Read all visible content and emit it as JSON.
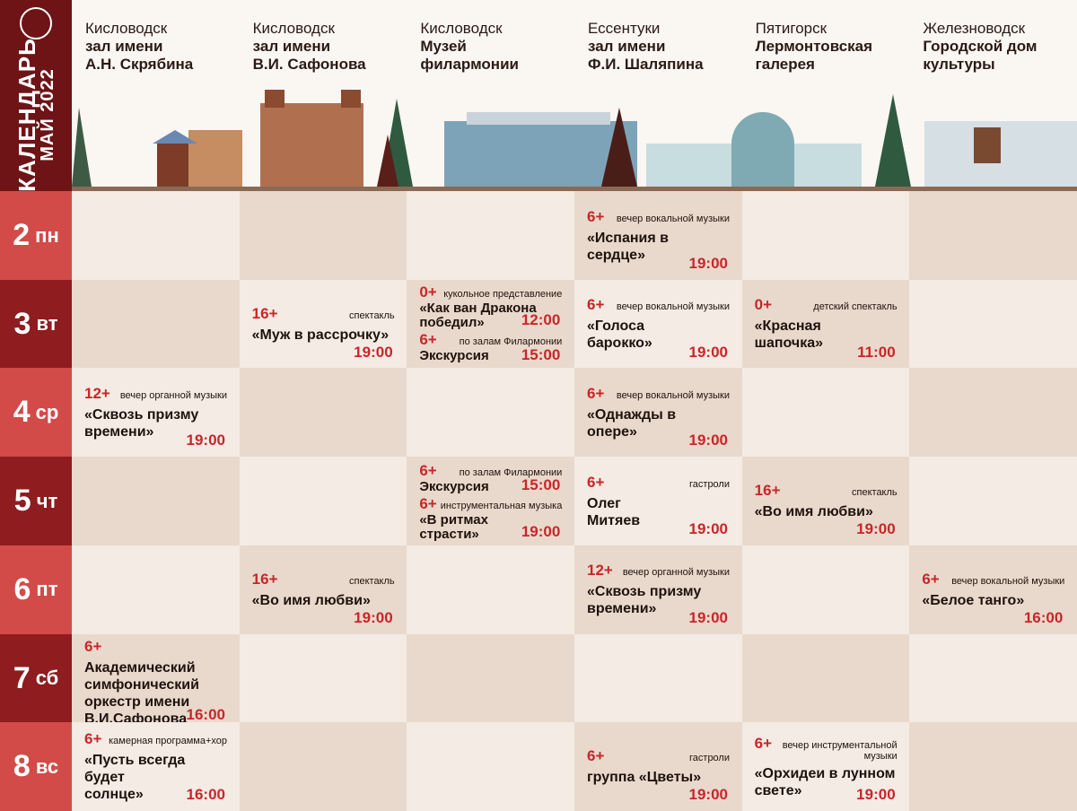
{
  "sidebar": {
    "title": "КАЛЕНДАРЬ",
    "month": "МАЙ",
    "year": "2022"
  },
  "venues": [
    {
      "city": "Кисловодск",
      "name": "зал имени\nА.Н. Скрябина"
    },
    {
      "city": "Кисловодск",
      "name": "зал имени\nВ.И. Сафонова"
    },
    {
      "city": "Кисловодск",
      "name": "Музей\nфилармонии"
    },
    {
      "city": "Ессентуки",
      "name": "зал имени\nФ.И. Шаляпина"
    },
    {
      "city": "Пятигорск",
      "name": "Лермонтовская\nгалерея"
    },
    {
      "city": "Железноводск",
      "name": "Городской дом\nкультуры"
    }
  ],
  "days": [
    {
      "day": "2",
      "weekday": "пн",
      "cells": [
        [],
        [],
        [],
        [
          {
            "age": "6+",
            "kind": "вечер вокальной музыки",
            "title": "«Испания в\nсердце»",
            "time": "19:00"
          }
        ],
        [],
        []
      ]
    },
    {
      "day": "3",
      "weekday": "вт",
      "cells": [
        [],
        [
          {
            "age": "16+",
            "kind": "спектакль",
            "title": "«Муж в рассрочку»",
            "time": "19:00"
          }
        ],
        [
          {
            "age": "0+",
            "kind": "кукольное представление",
            "title": "«Как ван Дракона\nпобедил»",
            "time": "12:00"
          },
          {
            "age": "6+",
            "kind": "по залам Филармонии",
            "title": "Экскурсия",
            "time": "15:00"
          }
        ],
        [
          {
            "age": "6+",
            "kind": "вечер вокальной музыки",
            "title": "«Голоса\nбарокко»",
            "time": "19:00"
          }
        ],
        [
          {
            "age": "0+",
            "kind": "детский спектакль",
            "title": "«Красная\nшапочка»",
            "time": "11:00"
          }
        ],
        []
      ]
    },
    {
      "day": "4",
      "weekday": "ср",
      "cells": [
        [
          {
            "age": "12+",
            "kind": "вечер органной музыки",
            "title": "«Сквозь призму\nвремени»",
            "time": "19:00"
          }
        ],
        [],
        [],
        [
          {
            "age": "6+",
            "kind": "вечер вокальной музыки",
            "title": "«Однажды в\nопере»",
            "time": "19:00"
          }
        ],
        [],
        []
      ]
    },
    {
      "day": "5",
      "weekday": "чт",
      "cells": [
        [],
        [],
        [
          {
            "age": "6+",
            "kind": "по залам Филармонии",
            "title": "Экскурсия",
            "time": "15:00"
          },
          {
            "age": "6+",
            "kind": "инструментальная музыка",
            "title": "«В ритмах\nстрасти»",
            "time": "19:00"
          }
        ],
        [
          {
            "age": "6+",
            "kind": "гастроли",
            "title": "Олег\nМитяев",
            "time": "19:00"
          }
        ],
        [
          {
            "age": "16+",
            "kind": "спектакль",
            "title": "«Во имя любви»",
            "time": "19:00"
          }
        ],
        []
      ]
    },
    {
      "day": "6",
      "weekday": "пт",
      "cells": [
        [],
        [
          {
            "age": "16+",
            "kind": "спектакль",
            "title": "«Во имя любви»",
            "time": "19:00"
          }
        ],
        [],
        [
          {
            "age": "12+",
            "kind": "вечер органной музыки",
            "title": "«Сквозь призму\nвремени»",
            "time": "19:00"
          }
        ],
        [],
        [
          {
            "age": "6+",
            "kind": "вечер вокальной музыки",
            "title": "«Белое танго»",
            "time": "16:00"
          }
        ]
      ]
    },
    {
      "day": "7",
      "weekday": "сб",
      "cells": [
        [
          {
            "age": "6+",
            "title": "Академический\nсимфонический\nоркестр имени\nВ.И.Сафонова",
            "time": "16:00"
          }
        ],
        [],
        [],
        [],
        [],
        []
      ]
    },
    {
      "day": "8",
      "weekday": "вс",
      "cells": [
        [
          {
            "age": "6+",
            "kind": "камерная программа+хор",
            "title": "«Пусть всегда будет\nсолнце»",
            "time": "16:00"
          }
        ],
        [],
        [],
        [
          {
            "age": "6+",
            "kind": "гастроли",
            "title": "группа «Цветы»",
            "time": "19:00"
          }
        ],
        [
          {
            "age": "6+",
            "kind": "вечер инструментальной музыки",
            "title": "«Орхидеи в лунном\nсвете»",
            "time": "19:00"
          }
        ],
        []
      ]
    }
  ]
}
